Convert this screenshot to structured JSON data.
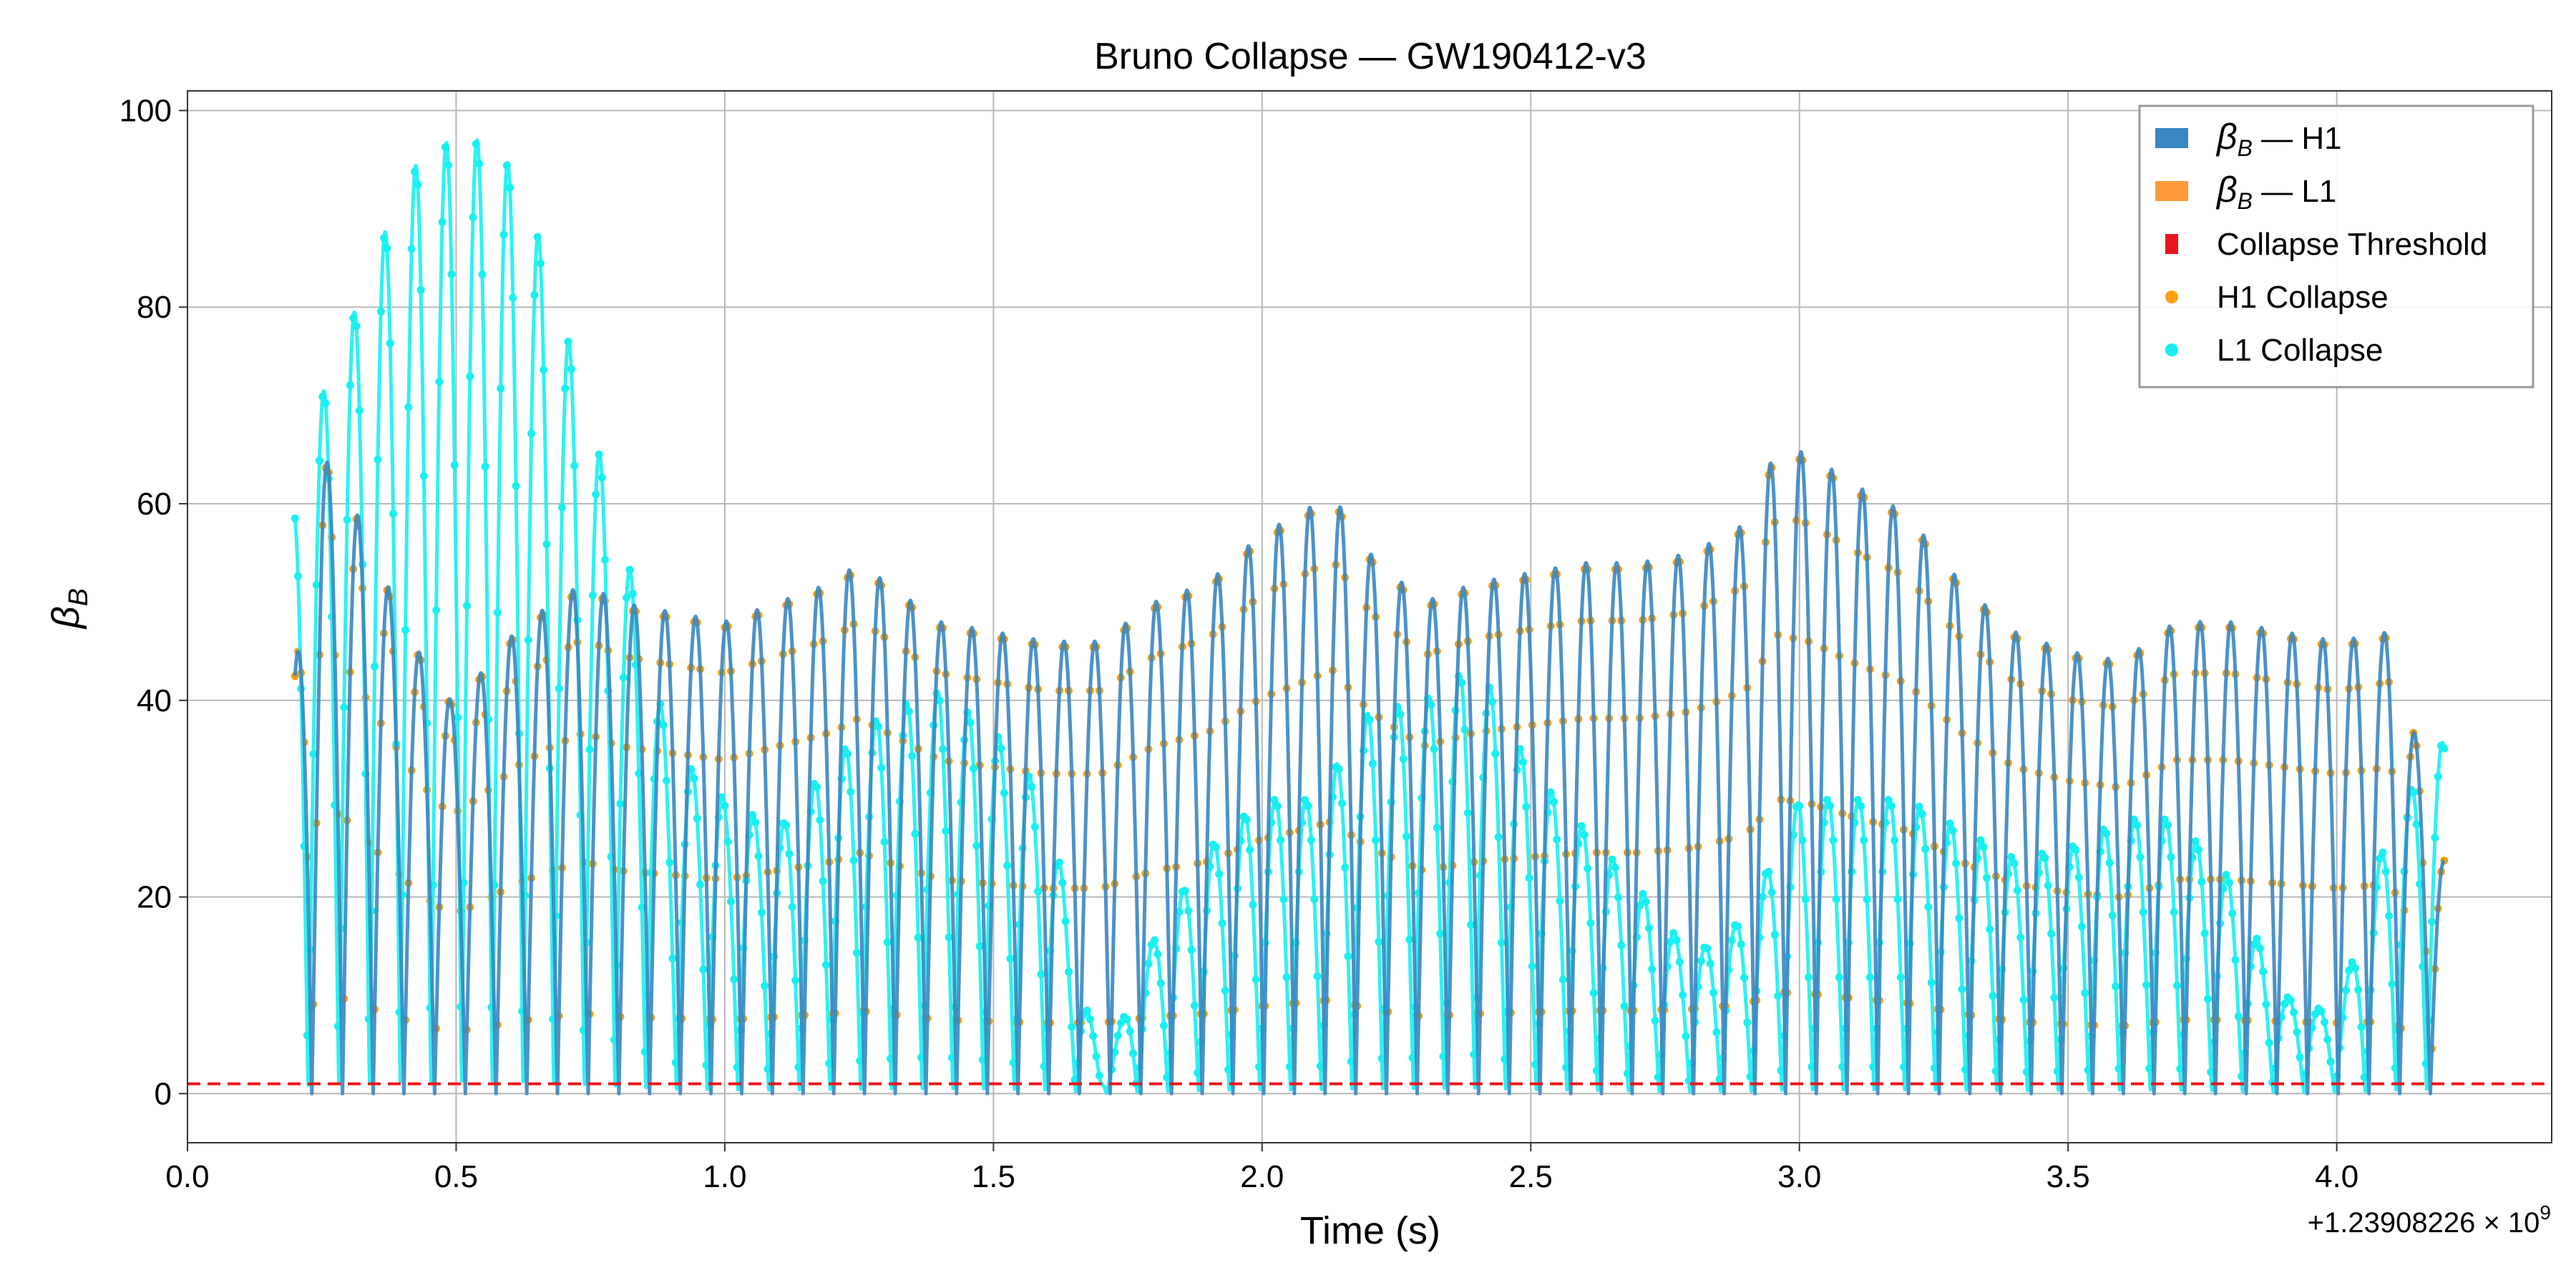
{
  "chart_data": {
    "type": "line",
    "title": "Bruno Collapse — GW190412-v3",
    "xlabel": "Time (s)",
    "ylabel": "β_B",
    "ylabel_main": "β",
    "ylabel_sub": "B",
    "x_offset_label": "+1.23908226 × 10",
    "x_offset_exponent": "9",
    "xlim": [
      0.0,
      4.4
    ],
    "ylim": [
      -5,
      102
    ],
    "xticks": [
      0.0,
      0.5,
      1.0,
      1.5,
      2.0,
      2.5,
      3.0,
      3.5,
      4.0
    ],
    "xtick_labels": [
      "0.0",
      "0.5",
      "1.0",
      "1.5",
      "2.0",
      "2.5",
      "3.0",
      "3.5",
      "4.0"
    ],
    "yticks": [
      0,
      20,
      40,
      60,
      80,
      100
    ],
    "ytick_labels": [
      "0",
      "20",
      "40",
      "60",
      "80",
      "100"
    ],
    "grid": true,
    "legend_position": "top-right",
    "threshold": 1.0,
    "oscillation_frequency_hz": 17.5,
    "x_range": [
      0.2,
      4.2
    ],
    "series": [
      {
        "name_main": "β",
        "name_sub": "B",
        "name_rest": " — H1",
        "color": "#3a86c0",
        "kind": "envelope-line",
        "envelope_knots": {
          "x": [
            0.2,
            0.25,
            0.3,
            0.37,
            0.43,
            0.49,
            0.55,
            0.61,
            0.68,
            0.74,
            0.8,
            0.9,
            1.0,
            1.1,
            1.2,
            1.25,
            1.3,
            1.4,
            1.5,
            1.6,
            1.7,
            1.8,
            1.9,
            2.0,
            2.07,
            2.13,
            2.2,
            2.3,
            2.4,
            2.5,
            2.6,
            2.7,
            2.8,
            2.9,
            2.96,
            3.02,
            3.1,
            3.2,
            3.3,
            3.4,
            3.5,
            3.6,
            3.7,
            3.8,
            3.9,
            4.0,
            4.1,
            4.2
          ],
          "y": [
            43,
            65,
            61,
            52,
            45,
            40,
            43,
            47,
            50,
            52,
            50,
            49,
            48,
            50,
            52,
            54,
            52,
            48,
            47,
            46,
            46,
            50,
            52,
            57,
            59,
            61,
            55,
            50,
            52,
            53,
            54,
            54,
            55,
            58,
            66,
            65,
            62,
            59,
            52,
            47,
            45,
            44,
            48,
            48,
            47,
            46,
            47,
            24
          ]
        }
      },
      {
        "name_main": "β",
        "name_sub": "B",
        "name_rest": " — L1",
        "color": "#ff9a3c",
        "kind": "envelope-line",
        "envelope_knots": {
          "x": [
            0.2,
            0.25,
            0.3,
            0.37,
            0.43,
            0.49,
            0.55,
            0.61,
            0.68,
            0.74,
            0.8,
            0.9,
            1.0,
            1.1,
            1.2,
            1.3,
            1.4,
            1.5,
            1.6,
            1.65,
            1.7,
            1.75,
            1.8,
            1.9,
            2.0,
            2.1,
            2.2,
            2.3,
            2.4,
            2.5,
            2.6,
            2.7,
            2.8,
            2.9,
            3.0,
            3.1,
            3.2,
            3.3,
            3.4,
            3.5,
            3.6,
            3.7,
            3.8,
            3.9,
            4.0,
            4.1,
            4.2
          ],
          "y": [
            60,
            71,
            78,
            88,
            95,
            97,
            97,
            94,
            83,
            70,
            59,
            35,
            30,
            27,
            34,
            39,
            41,
            37,
            30,
            16,
            2,
            9,
            16,
            25,
            30,
            30,
            39,
            40,
            44,
            33,
            27,
            21,
            14,
            18,
            30,
            30,
            30,
            27,
            24,
            25,
            28,
            28,
            22,
            10,
            8,
            28,
            36
          ]
        }
      },
      {
        "name": "Collapse Threshold",
        "color": "#e8151b",
        "kind": "threshold"
      },
      {
        "name": "H1 Collapse",
        "color": "#ff9f0e",
        "kind": "scatter"
      },
      {
        "name": "L1 Collapse",
        "color": "#18f0f0",
        "kind": "scatter"
      }
    ]
  }
}
